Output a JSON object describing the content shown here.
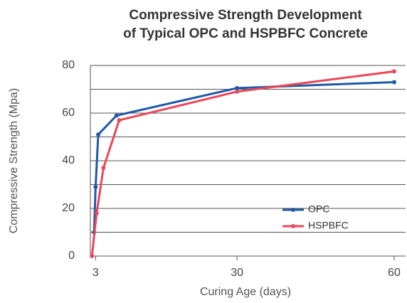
{
  "chart_data": {
    "type": "line",
    "title": [
      "Compressive Strength Development",
      "of Typical OPC and HSPBFC Concrete"
    ],
    "x_label": "Curing Age (days)",
    "y_label": "Compressive Strength (Mpa)",
    "xlim": [
      2,
      61.5
    ],
    "xticks": [
      3,
      30,
      60
    ],
    "ylim": [
      0,
      80
    ],
    "yticks": [
      0,
      20,
      40,
      60,
      80
    ],
    "yminor": [
      10,
      30,
      50,
      70
    ],
    "grid": true,
    "legend": "lower right",
    "series": [
      {
        "name": "OPC",
        "color": "#1f5aa6",
        "x": [
          2.7,
          3,
          3.5,
          7,
          30,
          60
        ],
        "values": [
          10,
          29,
          51,
          59,
          70.5,
          73
        ]
      },
      {
        "name": "HSPBFC",
        "color": "#e8485a",
        "x": [
          2.3,
          3.2,
          4.5,
          7.5,
          30,
          60
        ],
        "values": [
          0,
          18,
          37,
          57,
          69,
          77.5
        ]
      }
    ]
  }
}
